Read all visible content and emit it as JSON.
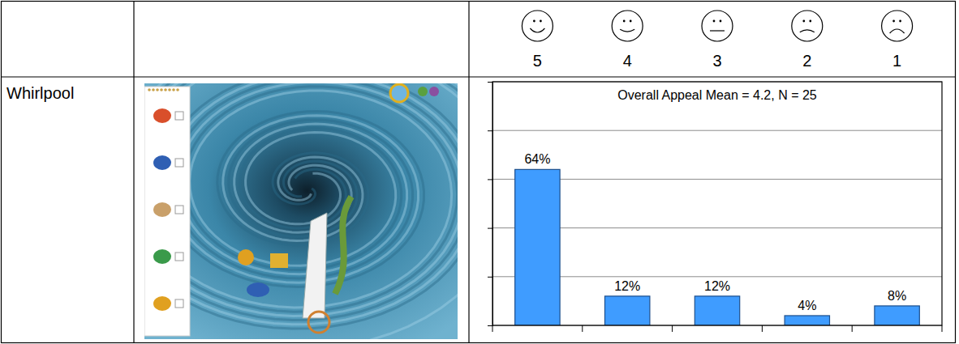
{
  "table": {
    "rows": [
      {
        "label": "Whirlpool"
      }
    ]
  },
  "chart_data": {
    "type": "bar",
    "title": "Overall Appeal Mean = 4.2, N = 25",
    "categories": [
      "5",
      "4",
      "3",
      "2",
      "1"
    ],
    "values": [
      64,
      12,
      12,
      4,
      8
    ],
    "value_labels": [
      "64%",
      "12%",
      "12%",
      "4%",
      "8%"
    ],
    "color": "#3f9cff",
    "ylim": [
      0,
      100
    ],
    "yticks": [
      0,
      20,
      40,
      60,
      80,
      100
    ],
    "grid": true,
    "data_labels": true,
    "tick_labels": false
  }
}
